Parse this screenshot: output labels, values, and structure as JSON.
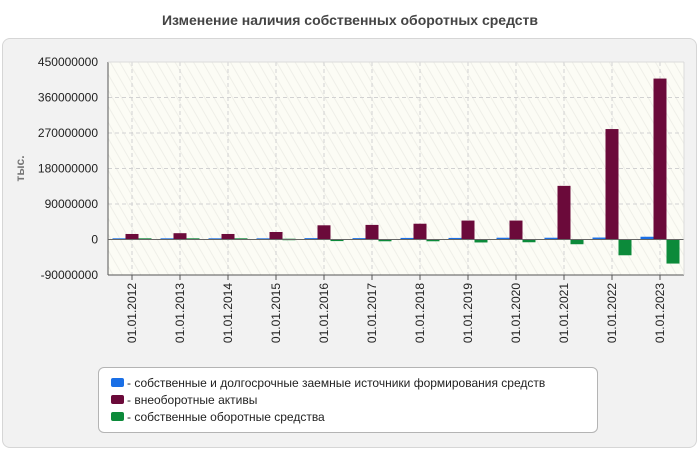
{
  "chart_data": {
    "type": "bar",
    "title": "Изменение наличия собственных оборотных средств",
    "ylabel": "тыс.",
    "xlabel": "",
    "ylim": [
      -90000000,
      450000000
    ],
    "yticks": [
      450000000,
      360000000,
      270000000,
      180000000,
      90000000,
      0,
      -90000000
    ],
    "categories": [
      "01.01.2012",
      "01.01.2013",
      "01.01.2014",
      "01.01.2015",
      "01.01.2016",
      "01.01.2017",
      "01.01.2018",
      "01.01.2019",
      "01.01.2020",
      "01.01.2021",
      "01.01.2022",
      "01.01.2023"
    ],
    "series": [
      {
        "name": "- собственные и долгосрочные заемные источники формирования средств",
        "color": "#1a6fe6",
        "values": [
          3000000,
          3000000,
          3000000,
          3000000,
          3500000,
          3500000,
          4000000,
          4000000,
          4500000,
          4500000,
          5000000,
          7000000
        ]
      },
      {
        "name": "- внеоборотные активы",
        "color": "#6b0a3a",
        "values": [
          14000000,
          16000000,
          14000000,
          19000000,
          36000000,
          37000000,
          40000000,
          48000000,
          48000000,
          136000000,
          280000000,
          408000000
        ]
      },
      {
        "name": "- собственные оборотные средства",
        "color": "#0c8a3a",
        "values": [
          3000000,
          3000000,
          3000000,
          2000000,
          -4000000,
          -4500000,
          -4500000,
          -7500000,
          -7000000,
          -12000000,
          -40000000,
          -61000000
        ]
      }
    ],
    "grid": true,
    "legend_position": "bottom"
  }
}
